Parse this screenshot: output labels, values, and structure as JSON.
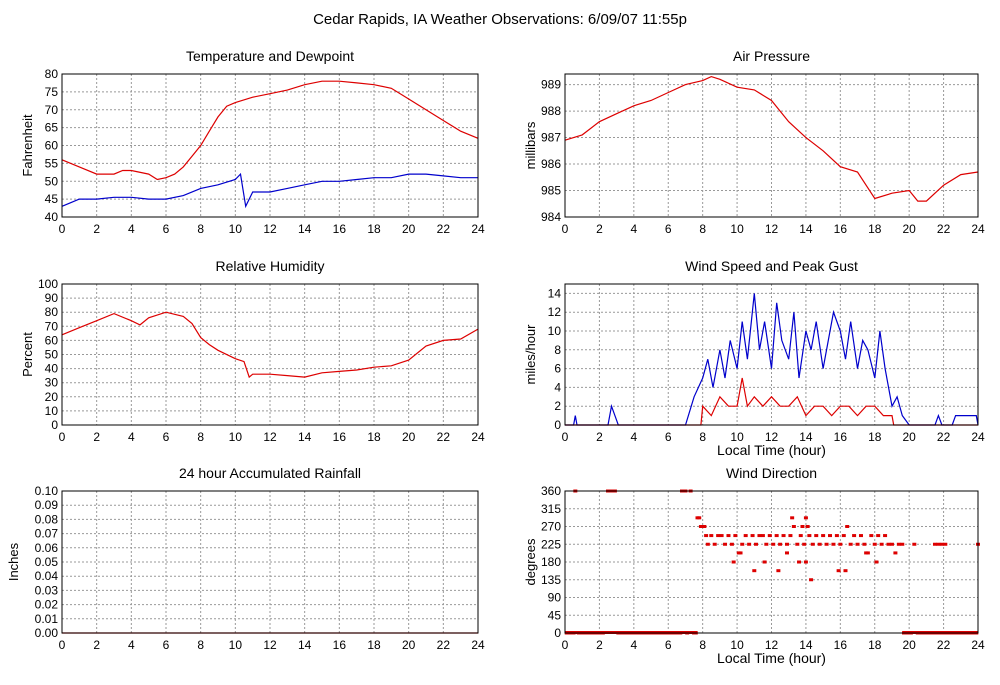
{
  "title": "Cedar Rapids, IA Weather Observations: 6/09/07 11:55p",
  "colors": {
    "red": "#dd0000",
    "blue": "#0000cc",
    "grid": "#999999"
  },
  "chart_data": [
    {
      "id": "temp",
      "type": "line",
      "title": "Temperature and Dewpoint",
      "xlabel": "",
      "ylabel": "Fahrenheit",
      "xlim": [
        0,
        24
      ],
      "ylim": [
        40,
        80
      ],
      "xticks": [
        0,
        2,
        4,
        6,
        8,
        10,
        12,
        14,
        16,
        18,
        20,
        22,
        24
      ],
      "yticks": [
        40,
        45,
        50,
        55,
        60,
        65,
        70,
        75,
        80
      ],
      "grid": true,
      "series": [
        {
          "color": "#dd0000",
          "x": [
            0,
            1,
            2,
            3,
            3.5,
            4,
            5,
            5.5,
            6,
            6.5,
            7,
            7.5,
            8,
            8.5,
            9,
            9.5,
            10,
            11,
            12,
            13,
            14,
            15,
            16,
            17,
            18,
            19,
            20,
            21,
            22,
            23,
            24
          ],
          "y": [
            56,
            54,
            52,
            52,
            53,
            53,
            52,
            50.5,
            51,
            52,
            54,
            57,
            60,
            64,
            68,
            71,
            72,
            73.5,
            74.5,
            75.5,
            77,
            78,
            78,
            77.5,
            77,
            76,
            73,
            70,
            67,
            64,
            62
          ]
        },
        {
          "color": "#0000cc",
          "x": [
            0,
            0.5,
            1,
            2,
            3,
            4,
            5,
            6,
            7,
            8,
            9,
            10,
            10.3,
            10.6,
            11,
            12,
            13,
            14,
            15,
            16,
            17,
            18,
            19,
            20,
            21,
            22,
            23,
            24
          ],
          "y": [
            43,
            44,
            45,
            45,
            45.5,
            45.5,
            45,
            45,
            46,
            48,
            49,
            50.5,
            52,
            43,
            47,
            47,
            48,
            49,
            50,
            50,
            50.5,
            51,
            51,
            52,
            52,
            51.5,
            51,
            51
          ]
        }
      ]
    },
    {
      "id": "pressure",
      "type": "line",
      "title": "Air Pressure",
      "xlabel": "",
      "ylabel": "millibars",
      "xlim": [
        0,
        24
      ],
      "ylim": [
        984,
        989.4
      ],
      "xticks": [
        0,
        2,
        4,
        6,
        8,
        10,
        12,
        14,
        16,
        18,
        20,
        22,
        24
      ],
      "yticks": [
        984,
        985,
        986,
        987,
        988,
        989
      ],
      "grid": true,
      "series": [
        {
          "color": "#dd0000",
          "x": [
            0,
            1,
            2,
            3,
            4,
            5,
            6,
            7,
            8,
            8.5,
            9,
            10,
            11,
            12,
            13,
            14,
            15,
            16,
            17,
            17.5,
            18,
            19,
            20,
            20.5,
            21,
            22,
            23,
            24
          ],
          "y": [
            986.9,
            987.1,
            987.6,
            987.9,
            988.2,
            988.4,
            988.7,
            989.0,
            989.15,
            989.3,
            989.2,
            988.9,
            988.8,
            988.4,
            987.6,
            987.0,
            986.5,
            985.9,
            985.7,
            985.2,
            984.7,
            984.9,
            985.0,
            984.6,
            984.6,
            985.2,
            985.6,
            985.7
          ]
        }
      ]
    },
    {
      "id": "humidity",
      "type": "line",
      "title": "Relative Humidity",
      "xlabel": "",
      "ylabel": "Percent",
      "xlim": [
        0,
        24
      ],
      "ylim": [
        0,
        100
      ],
      "xticks": [
        0,
        2,
        4,
        6,
        8,
        10,
        12,
        14,
        16,
        18,
        20,
        22,
        24
      ],
      "yticks": [
        0,
        10,
        20,
        30,
        40,
        50,
        60,
        70,
        80,
        90,
        100
      ],
      "grid": true,
      "series": [
        {
          "color": "#dd0000",
          "x": [
            0,
            1,
            2,
            3,
            4,
            4.5,
            5,
            6,
            7,
            7.5,
            8,
            8.5,
            9,
            10,
            10.5,
            10.8,
            11,
            12,
            13,
            14,
            15,
            16,
            17,
            18,
            19,
            20,
            21,
            22,
            23,
            24
          ],
          "y": [
            64,
            69,
            74,
            79,
            74,
            71,
            76,
            80,
            77,
            72,
            62,
            57,
            53,
            47,
            45,
            34,
            36,
            36,
            35,
            34,
            37,
            38,
            39,
            41,
            42,
            46,
            56,
            60,
            61,
            68
          ]
        }
      ]
    },
    {
      "id": "wind",
      "type": "line",
      "title": "Wind Speed and Peak Gust",
      "xlabel": "Local Time (hour)",
      "ylabel": "miles/hour",
      "xlim": [
        0,
        24
      ],
      "ylim": [
        0,
        15
      ],
      "xticks": [
        0,
        2,
        4,
        6,
        8,
        10,
        12,
        14,
        16,
        18,
        20,
        22,
        24
      ],
      "yticks": [
        0,
        2,
        4,
        6,
        8,
        10,
        12,
        14
      ],
      "grid": true,
      "series": [
        {
          "color": "#0000cc",
          "x": [
            0,
            0.5,
            0.6,
            0.7,
            2.5,
            2.7,
            2.9,
            3.1,
            7,
            7.5,
            8,
            8.3,
            8.6,
            9,
            9.3,
            9.6,
            10,
            10.3,
            10.6,
            11,
            11.3,
            11.6,
            12,
            12.3,
            12.6,
            13,
            13.3,
            13.6,
            14,
            14.3,
            14.6,
            15,
            15.3,
            15.6,
            16,
            16.3,
            16.6,
            17,
            17.3,
            17.6,
            18,
            18.3,
            18.6,
            19,
            19.3,
            19.6,
            20,
            21.5,
            21.7,
            21.9,
            22.5,
            22.7,
            23.9,
            24
          ],
          "y": [
            0,
            0,
            1,
            0,
            0,
            2,
            1,
            0,
            0,
            3,
            5,
            7,
            4,
            8,
            5,
            9,
            6,
            11,
            7,
            14,
            8,
            11,
            6,
            13,
            9,
            7,
            12,
            5,
            10,
            8,
            11,
            6,
            9,
            12,
            10,
            7,
            11,
            6,
            9,
            8,
            5,
            10,
            6,
            2,
            3,
            1,
            0,
            0,
            1,
            0,
            0,
            1,
            1,
            0
          ]
        },
        {
          "color": "#dd0000",
          "x": [
            0,
            7.9,
            8,
            8.5,
            9,
            9.5,
            10,
            10.3,
            10.6,
            11,
            11.5,
            12,
            12.5,
            13,
            13.5,
            14,
            14.5,
            15,
            15.5,
            16,
            16.5,
            17,
            17.5,
            18,
            18.5,
            19,
            19.1,
            24
          ],
          "y": [
            0,
            0,
            2,
            1,
            3,
            2,
            2,
            5,
            2,
            3,
            2,
            3,
            2,
            2,
            3,
            1,
            2,
            2,
            1,
            2,
            2,
            1,
            2,
            2,
            1,
            1,
            0,
            0
          ]
        }
      ]
    },
    {
      "id": "rain",
      "type": "line",
      "title": "24 hour Accumulated Rainfall",
      "xlabel": "",
      "ylabel": "Inches",
      "xlim": [
        0,
        24
      ],
      "ylim": [
        0,
        0.1
      ],
      "xticks": [
        0,
        2,
        4,
        6,
        8,
        10,
        12,
        14,
        16,
        18,
        20,
        22,
        24
      ],
      "yticks": [
        "0.00",
        "0.01",
        "0.02",
        "0.03",
        "0.04",
        "0.05",
        "0.06",
        "0.07",
        "0.08",
        "0.09",
        "0.10"
      ],
      "grid": true,
      "series": [
        {
          "color": "#dd0000",
          "x": [
            0,
            24
          ],
          "y": [
            0,
            0
          ]
        }
      ]
    },
    {
      "id": "direction",
      "type": "scatter",
      "title": "Wind Direction",
      "xlabel": "Local Time (hour)",
      "ylabel": "degrees",
      "xlim": [
        0,
        24
      ],
      "ylim": [
        0,
        360
      ],
      "xticks": [
        0,
        2,
        4,
        6,
        8,
        10,
        12,
        14,
        16,
        18,
        20,
        22,
        24
      ],
      "yticks": [
        0,
        45,
        90,
        135,
        180,
        225,
        270,
        315,
        360
      ],
      "grid": true,
      "series": [
        {
          "color": "#dd0000",
          "x": [
            0.6,
            2.5,
            2.7,
            2.9,
            6.8,
            7.0,
            7.3,
            7.7,
            7.8,
            7.9,
            8.0,
            8.1,
            8.2,
            8.3,
            8.5,
            8.7,
            8.9,
            9.1,
            9.3,
            9.5,
            9.7,
            9.9,
            10.1,
            10.3,
            10.5,
            10.7,
            10.9,
            11.1,
            11.3,
            11.5,
            11.7,
            11.9,
            12.1,
            12.3,
            12.5,
            12.7,
            12.9,
            13.1,
            13.3,
            13.5,
            13.7,
            13.9,
            14.0,
            14.2,
            14.4,
            14.6,
            14.8,
            15.0,
            15.2,
            15.4,
            15.6,
            15.8,
            16.0,
            16.2,
            16.4,
            16.6,
            16.8,
            17.0,
            17.2,
            17.4,
            17.6,
            17.8,
            18.0,
            18.2,
            18.4,
            18.6,
            18.8,
            19.0,
            19.2,
            19.4,
            19.6,
            20.3,
            21.5,
            21.7,
            21.9,
            22.1,
            24.0,
            9.8,
            10.2,
            11.0,
            11.6,
            12.4,
            12.9,
            13.6,
            14.3,
            15.9,
            16.3,
            17.5,
            18.1,
            13.2,
            14.0,
            14.1,
            13.8
          ],
          "y": [
            360,
            360,
            360,
            360,
            360,
            360,
            360,
            292,
            292,
            270,
            270,
            270,
            247,
            225,
            247,
            225,
            247,
            247,
            225,
            247,
            225,
            247,
            203,
            225,
            247,
            225,
            247,
            225,
            247,
            247,
            225,
            247,
            225,
            247,
            225,
            247,
            225,
            247,
            270,
            225,
            247,
            225,
            180,
            247,
            225,
            247,
            225,
            247,
            225,
            247,
            225,
            247,
            225,
            247,
            270,
            225,
            247,
            225,
            247,
            225,
            203,
            247,
            225,
            247,
            225,
            247,
            225,
            225,
            203,
            225,
            225,
            225,
            225,
            225,
            225,
            225,
            225,
            180,
            203,
            158,
            180,
            158,
            203,
            180,
            135,
            158,
            158,
            203,
            180,
            292,
            292,
            270,
            270
          ]
        },
        {
          "color": "#dd0000",
          "x": [
            0.1,
            0.3,
            0.5,
            0.8,
            1.0,
            1.2,
            1.4,
            1.6,
            1.8,
            2.0,
            2.2,
            3.1,
            3.3,
            3.5,
            3.7,
            3.9,
            4.1,
            4.3,
            4.5,
            4.7,
            4.9,
            5.1,
            5.3,
            5.5,
            5.7,
            5.9,
            6.1,
            6.3,
            6.5,
            6.7,
            7.1,
            7.5,
            7.6,
            19.7,
            19.9,
            20.1,
            20.5,
            20.7,
            20.9,
            21.1,
            21.3,
            21.5,
            21.7,
            21.9,
            22.1,
            22.3,
            22.5,
            22.7,
            22.9,
            23.1,
            23.3,
            23.5,
            23.7,
            23.9
          ],
          "y": [
            0,
            0,
            0,
            0,
            0,
            0,
            0,
            0,
            0,
            0,
            0,
            0,
            0,
            0,
            0,
            0,
            0,
            0,
            0,
            0,
            0,
            0,
            0,
            0,
            0,
            0,
            0,
            0,
            0,
            0,
            0,
            0,
            0,
            0,
            0,
            0,
            0,
            0,
            0,
            0,
            0,
            0,
            0,
            0,
            0,
            0,
            0,
            0,
            0,
            0,
            0,
            0,
            0,
            0
          ]
        }
      ]
    }
  ]
}
